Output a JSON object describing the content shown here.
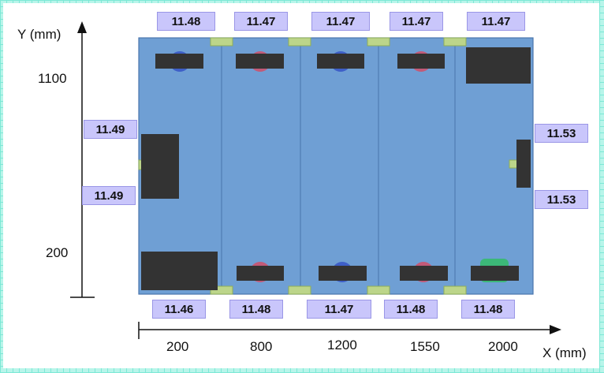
{
  "axes": {
    "y_title": "Y (mm)",
    "x_title": "X (mm)",
    "y_ticks": [
      "1100",
      "200"
    ],
    "x_ticks": [
      "200",
      "800",
      "1200",
      "1550",
      "2000"
    ]
  },
  "top_labels": [
    "11.48",
    "11.47",
    "11.47",
    "11.47",
    "11.47"
  ],
  "bottom_labels": [
    "11.46",
    "11.48",
    "11.47",
    "11.48",
    "11.48"
  ],
  "left_labels": [
    "11.49",
    "11.49"
  ],
  "right_labels": [
    "11.53",
    "11.53"
  ],
  "colors": {
    "panel": "#6f9fd4",
    "connector": "#bcd58a",
    "block": "#333333",
    "circle_blue": "#3e5fc8",
    "circle_red": "#c25a78",
    "circle_green": "#3cb878",
    "label_bg": "#c9c6fb"
  }
}
